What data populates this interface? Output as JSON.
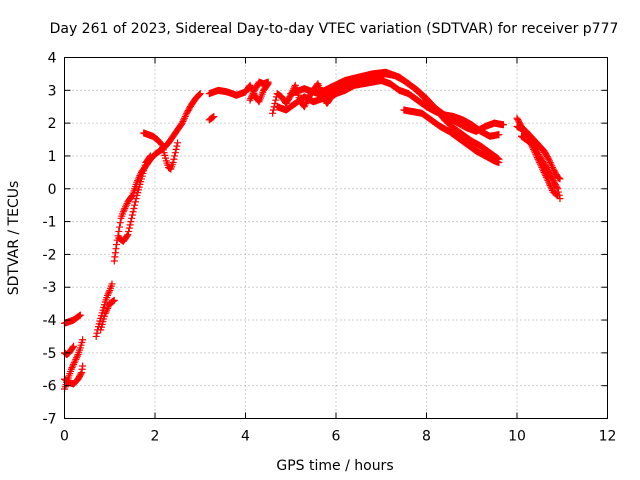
{
  "chart_data": {
    "type": "scatter",
    "title": "Day 261 of 2023, Sidereal Day-to-day VTEC variation (SDTVAR) for receiver p777",
    "xlabel": "GPS time / hours",
    "ylabel": "SDTVAR / TECUs",
    "xlim": [
      0,
      12
    ],
    "ylim": [
      -7,
      4
    ],
    "xticks": [
      0,
      2,
      4,
      6,
      8,
      10,
      12
    ],
    "yticks": [
      -7,
      -6,
      -5,
      -4,
      -3,
      -2,
      -1,
      0,
      1,
      2,
      3,
      4
    ],
    "grid": true,
    "marker": "plus",
    "series": [
      {
        "name": "SDTVAR",
        "color": "#ff0000",
        "segments": [
          [
            [
              0.0,
              -4.1
            ],
            [
              0.1,
              -4.05
            ],
            [
              0.2,
              -4.0
            ],
            [
              0.3,
              -3.9
            ],
            [
              0.35,
              -3.85
            ]
          ],
          [
            [
              0.0,
              -6.1
            ],
            [
              0.05,
              -5.9
            ],
            [
              0.1,
              -5.7
            ],
            [
              0.15,
              -5.5
            ],
            [
              0.2,
              -5.35
            ],
            [
              0.25,
              -5.2
            ],
            [
              0.3,
              -5.05
            ],
            [
              0.35,
              -4.85
            ],
            [
              0.4,
              -4.6
            ]
          ],
          [
            [
              0.0,
              -5.0
            ],
            [
              0.05,
              -5.05
            ],
            [
              0.1,
              -5.0
            ],
            [
              0.15,
              -4.9
            ],
            [
              0.2,
              -4.8
            ]
          ],
          [
            [
              0.0,
              -5.8
            ],
            [
              0.1,
              -5.9
            ],
            [
              0.2,
              -5.95
            ],
            [
              0.3,
              -5.8
            ],
            [
              0.38,
              -5.6
            ],
            [
              0.4,
              -5.4
            ]
          ],
          [
            [
              0.7,
              -4.5
            ],
            [
              0.75,
              -4.2
            ],
            [
              0.8,
              -3.95
            ],
            [
              0.85,
              -3.7
            ],
            [
              0.9,
              -3.45
            ],
            [
              0.95,
              -3.25
            ],
            [
              1.0,
              -3.1
            ],
            [
              1.05,
              -2.9
            ]
          ],
          [
            [
              0.8,
              -4.3
            ],
            [
              0.9,
              -3.8
            ],
            [
              1.0,
              -3.5
            ],
            [
              1.1,
              -3.4
            ]
          ],
          [
            [
              1.1,
              -2.2
            ],
            [
              1.15,
              -1.7
            ],
            [
              1.2,
              -1.3
            ],
            [
              1.25,
              -0.9
            ],
            [
              1.3,
              -0.7
            ],
            [
              1.35,
              -0.55
            ],
            [
              1.4,
              -0.4
            ],
            [
              1.5,
              -0.2
            ],
            [
              1.6,
              0.2
            ],
            [
              1.7,
              0.5
            ],
            [
              1.8,
              0.7
            ],
            [
              1.9,
              0.9
            ],
            [
              2.0,
              1.05
            ],
            [
              2.1,
              1.15
            ],
            [
              2.2,
              1.25
            ],
            [
              2.3,
              1.4
            ],
            [
              2.4,
              1.6
            ],
            [
              2.5,
              1.8
            ],
            [
              2.6,
              2.0
            ],
            [
              2.7,
              2.3
            ],
            [
              2.8,
              2.55
            ],
            [
              2.9,
              2.75
            ],
            [
              3.0,
              2.9
            ]
          ],
          [
            [
              1.2,
              -1.5
            ],
            [
              1.3,
              -1.6
            ],
            [
              1.4,
              -1.4
            ],
            [
              1.5,
              -0.8
            ],
            [
              1.6,
              -0.2
            ],
            [
              1.7,
              0.3
            ],
            [
              1.8,
              0.8
            ],
            [
              1.9,
              1.0
            ]
          ],
          [
            [
              1.75,
              1.7
            ],
            [
              1.85,
              1.65
            ],
            [
              1.95,
              1.6
            ],
            [
              2.05,
              1.5
            ],
            [
              2.15,
              1.35
            ],
            [
              2.2,
              1.1
            ],
            [
              2.25,
              0.85
            ],
            [
              2.3,
              0.65
            ],
            [
              2.35,
              0.6
            ],
            [
              2.4,
              0.8
            ],
            [
              2.45,
              1.1
            ],
            [
              2.5,
              1.4
            ]
          ],
          [
            [
              3.2,
              2.1
            ],
            [
              3.3,
              2.2
            ]
          ],
          [
            [
              3.2,
              2.9
            ],
            [
              3.4,
              3.0
            ],
            [
              3.6,
              2.95
            ],
            [
              3.8,
              2.85
            ],
            [
              4.0,
              2.95
            ],
            [
              4.1,
              3.15
            ],
            [
              4.2,
              2.85
            ],
            [
              4.3,
              2.65
            ],
            [
              4.4,
              3.0
            ],
            [
              4.5,
              3.2
            ]
          ],
          [
            [
              4.1,
              2.7
            ],
            [
              4.2,
              3.0
            ],
            [
              4.3,
              3.25
            ],
            [
              4.4,
              3.2
            ],
            [
              4.5,
              3.25
            ]
          ],
          [
            [
              4.6,
              2.3
            ],
            [
              4.7,
              2.9
            ],
            [
              4.8,
              2.8
            ],
            [
              4.9,
              2.6
            ],
            [
              5.0,
              2.85
            ],
            [
              5.1,
              3.15
            ],
            [
              5.2,
              2.7
            ],
            [
              5.3,
              2.5
            ],
            [
              5.4,
              2.8
            ],
            [
              5.5,
              3.0
            ],
            [
              5.6,
              3.2
            ],
            [
              5.7,
              2.85
            ],
            [
              5.8,
              2.6
            ],
            [
              5.9,
              2.8
            ],
            [
              6.0,
              2.9
            ],
            [
              6.2,
              3.0
            ],
            [
              6.4,
              3.15
            ],
            [
              6.6,
              3.2
            ],
            [
              6.8,
              3.25
            ],
            [
              7.0,
              3.3
            ],
            [
              7.2,
              3.2
            ],
            [
              7.4,
              3.0
            ],
            [
              7.6,
              2.9
            ],
            [
              7.8,
              2.7
            ],
            [
              8.0,
              2.5
            ],
            [
              8.2,
              2.35
            ],
            [
              8.4,
              2.25
            ],
            [
              8.6,
              2.2
            ],
            [
              8.8,
              2.1
            ],
            [
              9.0,
              1.95
            ],
            [
              9.2,
              1.75
            ],
            [
              9.4,
              1.6
            ],
            [
              9.6,
              1.65
            ]
          ],
          [
            [
              4.7,
              2.5
            ],
            [
              4.9,
              2.4
            ],
            [
              5.1,
              2.6
            ],
            [
              5.3,
              2.8
            ],
            [
              5.5,
              2.65
            ],
            [
              5.7,
              2.75
            ],
            [
              5.9,
              2.95
            ],
            [
              6.1,
              3.1
            ],
            [
              6.3,
              3.25
            ],
            [
              6.5,
              3.35
            ],
            [
              6.7,
              3.4
            ],
            [
              6.9,
              3.45
            ],
            [
              7.1,
              3.5
            ],
            [
              7.3,
              3.45
            ],
            [
              7.5,
              3.3
            ],
            [
              7.7,
              3.1
            ],
            [
              7.9,
              2.85
            ],
            [
              8.1,
              2.55
            ],
            [
              8.3,
              2.35
            ],
            [
              8.5,
              2.15
            ],
            [
              8.7,
              2.0
            ],
            [
              8.9,
              1.85
            ],
            [
              9.1,
              1.75
            ],
            [
              9.3,
              1.9
            ],
            [
              9.5,
              2.0
            ],
            [
              9.7,
              1.95
            ]
          ],
          [
            [
              5.0,
              2.9
            ],
            [
              5.3,
              3.05
            ],
            [
              5.6,
              2.9
            ],
            [
              5.9,
              3.1
            ],
            [
              6.2,
              3.3
            ],
            [
              6.5,
              3.4
            ],
            [
              6.8,
              3.5
            ],
            [
              7.1,
              3.55
            ],
            [
              7.4,
              3.4
            ],
            [
              7.6,
              3.2
            ],
            [
              7.8,
              3.0
            ],
            [
              8.0,
              2.75
            ],
            [
              8.2,
              2.45
            ],
            [
              8.4,
              2.1
            ],
            [
              8.6,
              1.85
            ],
            [
              8.8,
              1.65
            ],
            [
              9.0,
              1.45
            ],
            [
              9.2,
              1.3
            ],
            [
              9.4,
              1.1
            ],
            [
              9.6,
              0.9
            ]
          ],
          [
            [
              7.5,
              2.4
            ],
            [
              7.7,
              2.35
            ],
            [
              7.9,
              2.3
            ],
            [
              8.1,
              2.1
            ],
            [
              8.3,
              1.9
            ],
            [
              8.5,
              1.75
            ],
            [
              8.7,
              1.55
            ],
            [
              8.9,
              1.35
            ],
            [
              9.1,
              1.15
            ],
            [
              9.3,
              1.0
            ],
            [
              9.5,
              0.85
            ],
            [
              9.6,
              0.8
            ]
          ],
          [
            [
              10.0,
              2.15
            ],
            [
              10.1,
              1.9
            ],
            [
              10.2,
              1.65
            ],
            [
              10.3,
              1.5
            ],
            [
              10.4,
              1.3
            ],
            [
              10.5,
              1.0
            ],
            [
              10.6,
              0.75
            ],
            [
              10.7,
              0.5
            ],
            [
              10.8,
              0.25
            ],
            [
              10.9,
              0.0
            ],
            [
              10.95,
              -0.3
            ]
          ],
          [
            [
              10.0,
              1.9
            ],
            [
              10.2,
              1.75
            ],
            [
              10.4,
              1.45
            ],
            [
              10.6,
              1.15
            ],
            [
              10.7,
              0.9
            ],
            [
              10.8,
              0.6
            ],
            [
              10.9,
              0.35
            ],
            [
              10.95,
              0.3
            ]
          ],
          [
            [
              10.1,
              1.6
            ],
            [
              10.3,
              1.4
            ],
            [
              10.5,
              0.8
            ],
            [
              10.6,
              0.5
            ],
            [
              10.7,
              0.2
            ],
            [
              10.8,
              -0.1
            ],
            [
              10.9,
              -0.2
            ]
          ]
        ]
      }
    ]
  }
}
